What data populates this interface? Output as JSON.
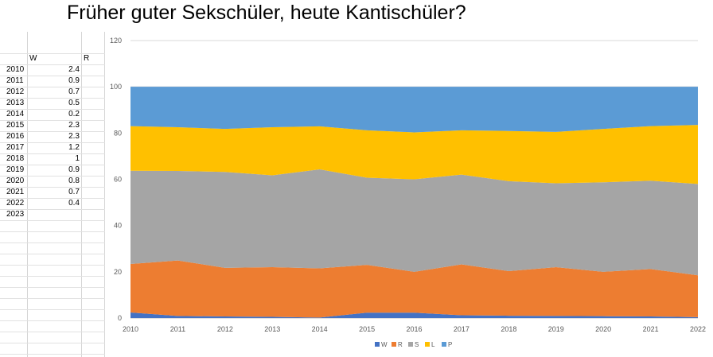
{
  "title": "Früher guter Sekschüler, heute Kantischüler?",
  "table": {
    "headers": {
      "w": "W",
      "r": "R"
    },
    "rows": [
      {
        "year": "2010",
        "w": "2.4"
      },
      {
        "year": "2011",
        "w": "0.9"
      },
      {
        "year": "2012",
        "w": "0.7"
      },
      {
        "year": "2013",
        "w": "0.5"
      },
      {
        "year": "2014",
        "w": "0.2"
      },
      {
        "year": "2015",
        "w": "2.3"
      },
      {
        "year": "2016",
        "w": "2.3"
      },
      {
        "year": "2017",
        "w": "1.2"
      },
      {
        "year": "2018",
        "w": "1"
      },
      {
        "year": "2019",
        "w": "0.9"
      },
      {
        "year": "2020",
        "w": "0.8"
      },
      {
        "year": "2021",
        "w": "0.7"
      },
      {
        "year": "2022",
        "w": "0.4"
      },
      {
        "year": "2023",
        "w": ""
      }
    ]
  },
  "chart_data": {
    "type": "area",
    "stacked": true,
    "title": "",
    "xlabel": "",
    "ylabel": "",
    "ylim": [
      0,
      120
    ],
    "yticks": [
      0,
      20,
      40,
      60,
      80,
      100,
      120
    ],
    "grid": true,
    "legend_position": "bottom",
    "x": [
      "2010",
      "2011",
      "2012",
      "2013",
      "2014",
      "2015",
      "2016",
      "2017",
      "2018",
      "2019",
      "2020",
      "2021",
      "2022"
    ],
    "series": [
      {
        "name": "W",
        "color": "#4472C4",
        "values": [
          2.4,
          0.9,
          0.7,
          0.5,
          0.2,
          2.3,
          2.3,
          1.2,
          1,
          0.9,
          0.8,
          0.7,
          0.4
        ]
      },
      {
        "name": "R",
        "color": "#ED7D31",
        "values": [
          21,
          24,
          21,
          21.5,
          21.3,
          20.7,
          17.7,
          22,
          19.3,
          21.1,
          19.2,
          20.5,
          18.1
        ]
      },
      {
        "name": "S",
        "color": "#A5A5A5",
        "values": [
          40.3,
          38.7,
          41.5,
          39.7,
          42.8,
          37.7,
          40,
          38.8,
          38.9,
          36.3,
          38.7,
          38.2,
          39.5
        ]
      },
      {
        "name": "L",
        "color": "#FFC000",
        "values": [
          19.3,
          18.9,
          18.6,
          20.8,
          18.6,
          20.5,
          20.3,
          19.2,
          21.7,
          22.2,
          23.1,
          23.6,
          25.5
        ]
      },
      {
        "name": "P",
        "color": "#5B9BD5",
        "values": [
          17,
          17.5,
          18.2,
          17.5,
          17.1,
          18.8,
          19.7,
          18.8,
          19.1,
          19.5,
          18.2,
          17,
          16.5
        ]
      }
    ]
  }
}
